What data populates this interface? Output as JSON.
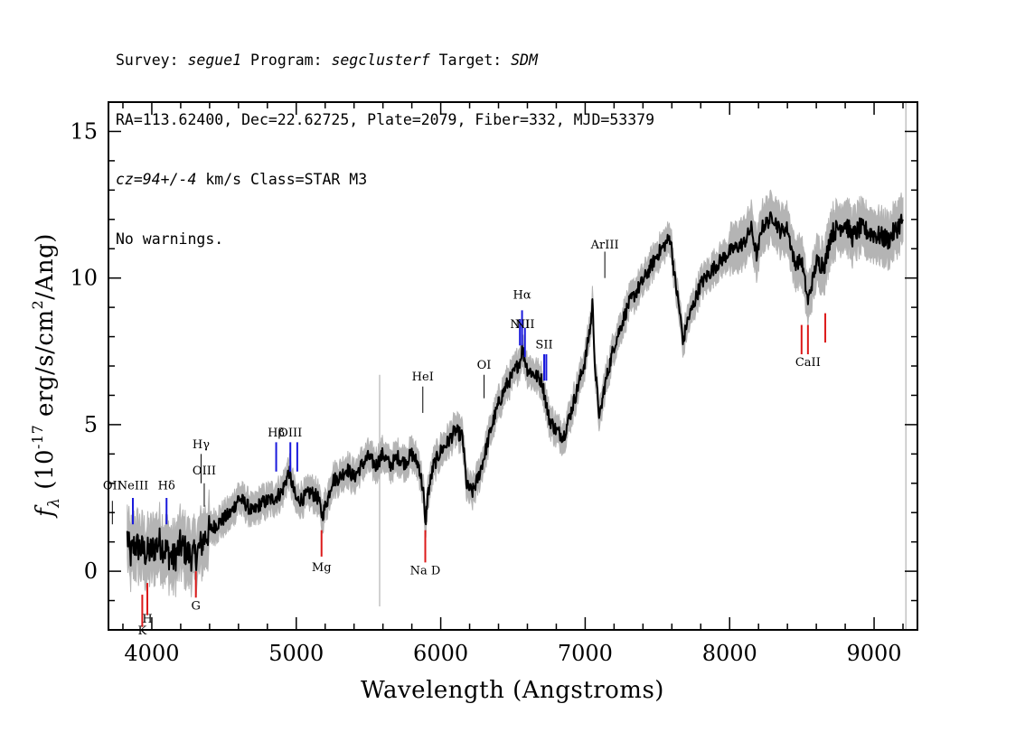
{
  "header": {
    "line1": {
      "survey_label": "Survey: ",
      "survey": "segue1",
      "program_label": " Program: ",
      "program": "segclusterf",
      "target_label": " Target: ",
      "target": "SDM"
    },
    "line2": "RA=113.62400, Dec=22.62725, Plate=2079, Fiber=332, MJD=53379",
    "line3": {
      "cz": "cz=94+/-4",
      "rest": " km/s Class=STAR M3"
    },
    "line4": "No warnings."
  },
  "chart_data": {
    "type": "line",
    "xlabel": "Wavelength (Angstroms)",
    "ylabel_parts": {
      "f": "f",
      "sub": "λ",
      "open": " (10",
      "exp1": "-17",
      "mid": " erg/s/cm",
      "exp2": "2",
      "close": "/Ang)"
    },
    "xlim": [
      3700,
      9300
    ],
    "ylim": [
      -2,
      16
    ],
    "xticks_major": [
      4000,
      5000,
      6000,
      7000,
      8000,
      9000
    ],
    "yticks_major": [
      0,
      5,
      10,
      15
    ],
    "series_color": "#000000",
    "error_color": "#b4b4b4",
    "spectrum_points": [
      [
        3830,
        1.2
      ],
      [
        3850,
        0.5
      ],
      [
        3880,
        0.9
      ],
      [
        3920,
        0.8
      ],
      [
        3960,
        0.6
      ],
      [
        4000,
        0.7
      ],
      [
        4050,
        1.0
      ],
      [
        4100,
        0.7
      ],
      [
        4150,
        0.4
      ],
      [
        4200,
        0.9
      ],
      [
        4250,
        0.6
      ],
      [
        4300,
        0.5
      ],
      [
        4350,
        1.0
      ],
      [
        4400,
        1.4
      ],
      [
        4450,
        1.6
      ],
      [
        4500,
        1.8
      ],
      [
        4550,
        2.0
      ],
      [
        4600,
        2.5
      ],
      [
        4650,
        2.3
      ],
      [
        4700,
        2.0
      ],
      [
        4750,
        2.3
      ],
      [
        4800,
        2.4
      ],
      [
        4850,
        2.5
      ],
      [
        4900,
        2.7
      ],
      [
        4950,
        3.4
      ],
      [
        5000,
        2.4
      ],
      [
        5050,
        2.5
      ],
      [
        5100,
        2.7
      ],
      [
        5150,
        2.5
      ],
      [
        5180,
        1.9
      ],
      [
        5220,
        2.5
      ],
      [
        5250,
        3.1
      ],
      [
        5300,
        3.2
      ],
      [
        5350,
        3.5
      ],
      [
        5400,
        3.2
      ],
      [
        5450,
        3.6
      ],
      [
        5500,
        3.9
      ],
      [
        5550,
        3.6
      ],
      [
        5600,
        4.0
      ],
      [
        5650,
        3.6
      ],
      [
        5700,
        3.9
      ],
      [
        5750,
        3.7
      ],
      [
        5800,
        4.0
      ],
      [
        5850,
        3.6
      ],
      [
        5880,
        2.7
      ],
      [
        5893,
        1.5
      ],
      [
        5910,
        2.6
      ],
      [
        5950,
        3.6
      ],
      [
        6000,
        4.1
      ],
      [
        6050,
        4.4
      ],
      [
        6100,
        4.8
      ],
      [
        6150,
        4.6
      ],
      [
        6180,
        2.9
      ],
      [
        6220,
        2.7
      ],
      [
        6260,
        3.2
      ],
      [
        6300,
        3.9
      ],
      [
        6350,
        4.9
      ],
      [
        6400,
        5.7
      ],
      [
        6450,
        6.3
      ],
      [
        6500,
        6.7
      ],
      [
        6550,
        7.2
      ],
      [
        6563,
        7.6
      ],
      [
        6600,
        6.9
      ],
      [
        6650,
        6.7
      ],
      [
        6700,
        6.5
      ],
      [
        6750,
        5.2
      ],
      [
        6800,
        4.8
      ],
      [
        6850,
        4.6
      ],
      [
        6900,
        5.4
      ],
      [
        6950,
        6.3
      ],
      [
        7000,
        7.2
      ],
      [
        7040,
        8.5
      ],
      [
        7050,
        9.2
      ],
      [
        7070,
        6.8
      ],
      [
        7100,
        5.2
      ],
      [
        7130,
        6.2
      ],
      [
        7200,
        7.7
      ],
      [
        7300,
        9.1
      ],
      [
        7400,
        9.9
      ],
      [
        7500,
        10.8
      ],
      [
        7590,
        11.4
      ],
      [
        7620,
        10.0
      ],
      [
        7650,
        9.0
      ],
      [
        7680,
        7.8
      ],
      [
        7700,
        8.4
      ],
      [
        7800,
        9.8
      ],
      [
        7900,
        10.4
      ],
      [
        8000,
        10.9
      ],
      [
        8100,
        11.2
      ],
      [
        8150,
        11.7
      ],
      [
        8190,
        10.7
      ],
      [
        8220,
        11.7
      ],
      [
        8300,
        12.1
      ],
      [
        8350,
        11.6
      ],
      [
        8400,
        11.7
      ],
      [
        8450,
        10.5
      ],
      [
        8498,
        10.6
      ],
      [
        8542,
        9.2
      ],
      [
        8600,
        10.5
      ],
      [
        8662,
        10.5
      ],
      [
        8700,
        11.5
      ],
      [
        8800,
        11.9
      ],
      [
        8850,
        11.4
      ],
      [
        8900,
        11.7
      ],
      [
        9000,
        11.5
      ],
      [
        9100,
        11.3
      ],
      [
        9200,
        12.0
      ]
    ],
    "lines": [
      {
        "label": "OII",
        "lambda": 3727,
        "color": "#000000",
        "y0": 1.6,
        "y1": 2.4,
        "label_y": 2.8
      },
      {
        "label": "NeIII",
        "lambda": 3869,
        "color": "#1a1adc",
        "y0": 1.6,
        "y1": 2.5,
        "label_y": 2.8
      },
      {
        "label": "Hδ",
        "lambda": 4102,
        "color": "#1a1adc",
        "y0": 1.6,
        "y1": 2.5,
        "label_y": 2.8
      },
      {
        "label": "Hγ",
        "lambda": 4341,
        "color": "#000000",
        "y0": 3.0,
        "y1": 4.0,
        "label_y": 4.2
      },
      {
        "label": "OIII",
        "lambda": 4363,
        "color": "#000000",
        "y0": 2.2,
        "y1": 3.0,
        "label_y": 3.3
      },
      {
        "label": "Hβ",
        "lambda": 4861,
        "color": "#1a1adc",
        "y0": 3.4,
        "y1": 4.4,
        "label_y": 4.6
      },
      {
        "label": "OIII",
        "lambda": 4959,
        "color": "#1a1adc",
        "y0": 3.4,
        "y1": 4.4,
        "label_y": 4.6
      },
      {
        "label": "",
        "lambda": 5007,
        "color": "#1a1adc",
        "y0": 3.4,
        "y1": 4.4,
        "label_y": 4.6
      },
      {
        "label": "HeI",
        "lambda": 5876,
        "color": "#000000",
        "y0": 5.4,
        "y1": 6.3,
        "label_y": 6.5
      },
      {
        "label": "OI",
        "lambda": 6300,
        "color": "#000000",
        "y0": 5.9,
        "y1": 6.7,
        "label_y": 6.9
      },
      {
        "label": "NII",
        "lambda": 6548,
        "color": "#1a1adc",
        "y0": 7.7,
        "y1": 8.6,
        "label_y": 8.3
      },
      {
        "label": "Hα",
        "lambda": 6563,
        "color": "#1a1adc",
        "y0": 7.7,
        "y1": 8.9,
        "label_y": 9.3
      },
      {
        "label": "NII",
        "lambda": 6583,
        "color": "#1a1adc",
        "y0": 7.3,
        "y1": 8.3,
        "label_y": 8.3
      },
      {
        "label": "SII",
        "lambda": 6716,
        "color": "#1a1adc",
        "y0": 6.5,
        "y1": 7.4,
        "label_y": 7.6
      },
      {
        "label": "",
        "lambda": 6731,
        "color": "#1a1adc",
        "y0": 6.5,
        "y1": 7.4,
        "label_y": 7.6
      },
      {
        "label": "ArIII",
        "lambda": 7136,
        "color": "#000000",
        "y0": 10.0,
        "y1": 10.9,
        "label_y": 11.0
      },
      {
        "label": "K",
        "lambda": 3934,
        "color": "#dc1a1a",
        "y0": -1.9,
        "y1": -0.8,
        "label_y": -2.15
      },
      {
        "label": "H",
        "lambda": 3969,
        "color": "#dc1a1a",
        "y0": -1.5,
        "y1": -0.4,
        "label_y": -1.75
      },
      {
        "label": "G",
        "lambda": 4305,
        "color": "#dc1a1a",
        "y0": -0.9,
        "y1": 0.0,
        "label_y": -1.3
      },
      {
        "label": "Mg",
        "lambda": 5175,
        "color": "#dc1a1a",
        "y0": 0.5,
        "y1": 1.4,
        "label_y": 0.0
      },
      {
        "label": "Na D",
        "lambda": 5893,
        "color": "#dc1a1a",
        "y0": 0.3,
        "y1": 1.4,
        "label_y": -0.1
      },
      {
        "label": "",
        "lambda": 8498,
        "color": "#dc1a1a",
        "y0": 7.4,
        "y1": 8.4,
        "label_y": 7.0
      },
      {
        "label": "CaII",
        "lambda": 8542,
        "color": "#dc1a1a",
        "y0": 7.4,
        "y1": 8.4,
        "label_y": 7.0
      },
      {
        "label": "",
        "lambda": 8662,
        "color": "#dc1a1a",
        "y0": 7.8,
        "y1": 8.8,
        "label_y": 7.0
      }
    ]
  }
}
